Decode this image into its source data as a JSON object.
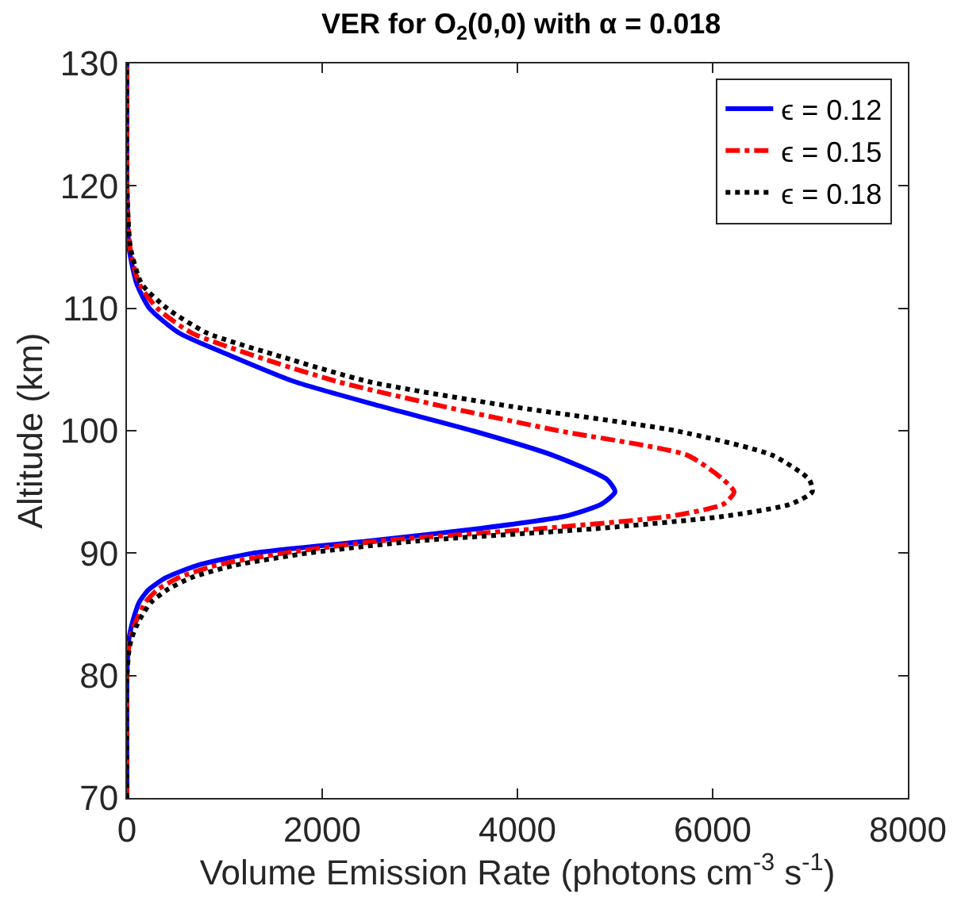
{
  "chart_data": {
    "type": "line",
    "title": "VER for O$_{2}$(0,0) with α = 0.018",
    "xlabel": "Volume Emission Rate (photons cm$^{-3}$ s$^{-1}$)",
    "ylabel": "Altitude (km)",
    "xlim": [
      0,
      8000
    ],
    "xticks": [
      0,
      2000,
      4000,
      6000,
      8000
    ],
    "ylim": [
      70,
      130
    ],
    "yticks": [
      70,
      80,
      90,
      100,
      110,
      120,
      130
    ],
    "legend": "top right",
    "marker": "none",
    "series": [
      {
        "name": "ϵ = 0.12",
        "color": "#0000ff",
        "line_style": "solid",
        "x": [
          0,
          0,
          10,
          20,
          45,
          80,
          125,
          220,
          400,
          720,
          1290,
          2480,
          3600,
          4480,
          4860,
          5000,
          4920,
          4360,
          3540,
          2600,
          1720,
          1100,
          530,
          230,
          100,
          20,
          0,
          0
        ],
        "values": [
          70,
          80,
          82,
          83,
          84,
          85,
          86,
          87,
          88,
          89,
          90,
          91,
          92,
          93,
          94,
          95,
          96,
          98,
          100,
          102,
          104,
          106,
          108,
          110,
          112,
          115,
          120,
          130
        ]
      },
      {
        "name": "ϵ = 0.15",
        "color": "#ff0000",
        "line_style": "dashdot",
        "x": [
          0,
          0,
          15,
          30,
          70,
          125,
          190,
          310,
          530,
          910,
          1600,
          2600,
          4230,
          5550,
          6110,
          6220,
          6110,
          5740,
          4420,
          3230,
          2160,
          1350,
          660,
          310,
          125,
          30,
          0,
          0
        ],
        "values": [
          70,
          80,
          82,
          83,
          84,
          85,
          86,
          87,
          88,
          89,
          90,
          91,
          92,
          93,
          94,
          95,
          96,
          98,
          100,
          102,
          104,
          106,
          108,
          110,
          112,
          115,
          120,
          130
        ]
      },
      {
        "name": "ϵ = 0.18",
        "color": "#000000",
        "line_style": "dotted",
        "x": [
          0,
          0,
          20,
          45,
          95,
          160,
          250,
          410,
          660,
          1100,
          1850,
          2980,
          4800,
          6110,
          6800,
          7020,
          6990,
          6610,
          5620,
          3920,
          2480,
          1600,
          815,
          410,
          150,
          35,
          0,
          0
        ],
        "values": [
          70,
          80,
          82,
          83,
          84,
          85,
          86,
          87,
          88,
          89,
          90,
          91,
          92,
          93,
          94,
          95,
          96,
          98,
          100,
          102,
          104,
          106,
          108,
          110,
          112,
          115,
          120,
          130
        ]
      }
    ]
  }
}
